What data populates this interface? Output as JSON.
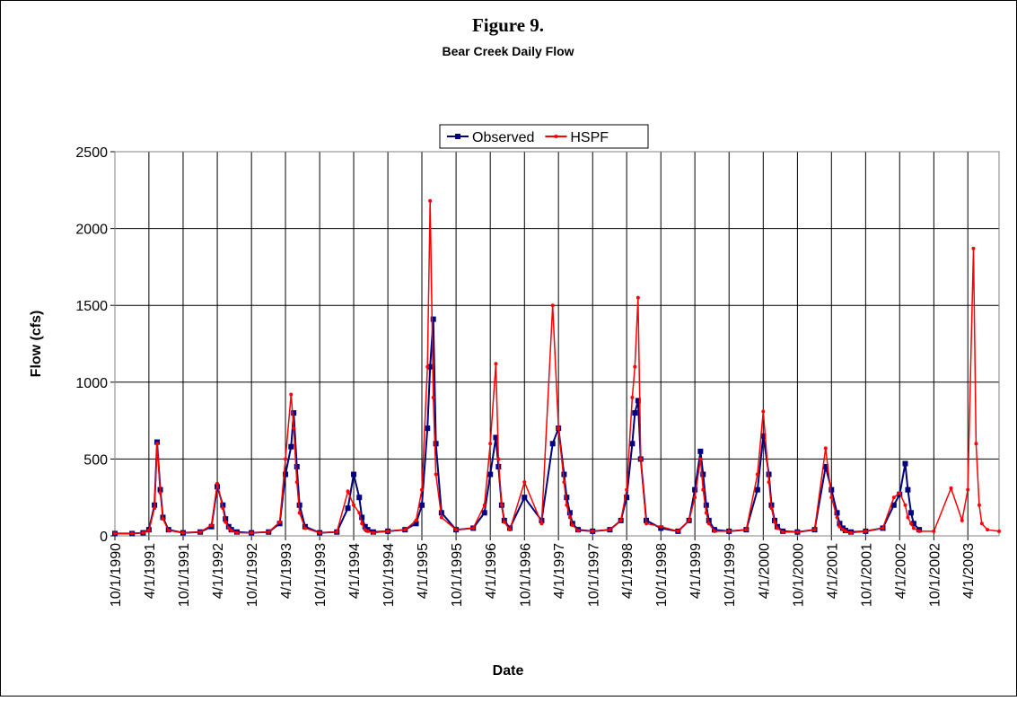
{
  "chart_data": {
    "type": "line",
    "title": "Figure 9.",
    "subtitle": "Bear Creek Daily Flow",
    "x_label": "Date",
    "y_label": "Flow (cfs)",
    "x": [
      "10/1/1990",
      "1/1/1991",
      "3/1/1991",
      "4/1/1991",
      "5/1/1991",
      "5/15/1991",
      "6/1/1991",
      "6/15/1991",
      "7/15/1991",
      "10/1/1991",
      "1/1/1992",
      "3/1/1992",
      "4/1/1992",
      "5/1/1992",
      "5/15/1992",
      "6/1/1992",
      "6/15/1992",
      "7/15/1992",
      "10/1/1992",
      "1/1/1993",
      "3/1/1993",
      "4/1/1993",
      "5/1/1993",
      "5/15/1993",
      "6/1/1993",
      "6/15/1993",
      "7/15/1993",
      "10/1/1993",
      "1/1/1994",
      "3/1/1994",
      "4/1/1994",
      "5/1/1994",
      "5/15/1994",
      "6/1/1994",
      "6/15/1994",
      "7/15/1994",
      "10/1/1994",
      "1/1/1995",
      "3/1/1995",
      "4/1/1995",
      "5/1/1995",
      "5/15/1995",
      "6/1/1995",
      "6/15/1995",
      "7/15/1995",
      "10/1/1995",
      "1/1/1996",
      "3/1/1996",
      "4/1/1996",
      "5/1/1996",
      "5/15/1996",
      "6/1/1996",
      "6/15/1996",
      "7/15/1996",
      "10/1/1996",
      "1/1/1997",
      "3/1/1997",
      "4/1/1997",
      "5/1/1997",
      "5/15/1997",
      "6/1/1997",
      "6/15/1997",
      "7/15/1997",
      "10/1/1997",
      "1/1/1998",
      "3/1/1998",
      "4/1/1998",
      "5/1/1998",
      "5/15/1998",
      "6/1/1998",
      "6/15/1998",
      "7/15/1998",
      "10/1/1998",
      "1/1/1999",
      "3/1/1999",
      "4/1/1999",
      "5/1/1999",
      "5/15/1999",
      "6/1/1999",
      "6/15/1999",
      "7/15/1999",
      "10/1/1999",
      "1/1/2000",
      "3/1/2000",
      "4/1/2000",
      "5/1/2000",
      "5/15/2000",
      "6/1/2000",
      "6/15/2000",
      "7/15/2000",
      "10/1/2000",
      "1/1/2001",
      "3/1/2001",
      "4/1/2001",
      "5/1/2001",
      "5/15/2001",
      "6/1/2001",
      "6/15/2001",
      "7/15/2001",
      "10/1/2001",
      "1/1/2002",
      "3/1/2002",
      "4/1/2002",
      "5/1/2002",
      "5/15/2002",
      "6/1/2002",
      "6/15/2002",
      "7/15/2002",
      "10/1/2002",
      "1/1/2003",
      "3/1/2003",
      "4/1/2003",
      "5/1/2003",
      "5/15/2003",
      "6/1/2003",
      "6/15/2003",
      "7/15/2003",
      "9/15/2003"
    ],
    "series": [
      {
        "name": "Observed",
        "color": "#000080",
        "marker": "square",
        "values": [
          15,
          15,
          20,
          40,
          200,
          610,
          300,
          120,
          40,
          20,
          25,
          60,
          320,
          200,
          110,
          60,
          40,
          25,
          20,
          25,
          80,
          400,
          580,
          800,
          450,
          200,
          60,
          20,
          25,
          180,
          400,
          250,
          120,
          60,
          40,
          25,
          30,
          40,
          80,
          200,
          700,
          1100,
          1410,
          600,
          150,
          40,
          50,
          150,
          400,
          640,
          450,
          200,
          100,
          50,
          250,
          100,
          600,
          700,
          400,
          250,
          150,
          80,
          40,
          30,
          40,
          100,
          250,
          600,
          800,
          880,
          500,
          100,
          50,
          30,
          100,
          300,
          550,
          400,
          200,
          100,
          40,
          30,
          40,
          300,
          650,
          400,
          200,
          100,
          60,
          30,
          25,
          40,
          450,
          300,
          150,
          80,
          50,
          35,
          25,
          30,
          50,
          200,
          270,
          470,
          300,
          150,
          80,
          40,
          null,
          null,
          null,
          null,
          null,
          null,
          null,
          null,
          null,
          null
        ]
      },
      {
        "name": "HSPF",
        "color": "#ff0000",
        "marker": "circle",
        "values": [
          15,
          15,
          20,
          35,
          180,
          600,
          280,
          110,
          35,
          20,
          25,
          70,
          340,
          180,
          90,
          50,
          35,
          20,
          20,
          25,
          90,
          500,
          920,
          700,
          350,
          150,
          50,
          20,
          25,
          290,
          200,
          150,
          80,
          40,
          30,
          20,
          30,
          40,
          100,
          300,
          1100,
          2180,
          900,
          400,
          120,
          40,
          50,
          200,
          600,
          1120,
          500,
          200,
          90,
          40,
          350,
          80,
          1500,
          700,
          350,
          200,
          120,
          70,
          35,
          30,
          40,
          100,
          300,
          900,
          1100,
          1550,
          500,
          80,
          60,
          30,
          100,
          250,
          500,
          300,
          150,
          80,
          30,
          30,
          40,
          400,
          810,
          350,
          180,
          90,
          50,
          25,
          25,
          40,
          570,
          250,
          120,
          60,
          40,
          30,
          20,
          30,
          50,
          250,
          280,
          200,
          120,
          80,
          50,
          30,
          30,
          310,
          100,
          300,
          1870,
          600,
          200,
          80,
          40,
          30
        ]
      }
    ],
    "xlim": [
      "10/1/1990",
      "9/15/2003"
    ],
    "xticks": [
      "10/1/1990",
      "4/1/1991",
      "10/1/1991",
      "4/1/1992",
      "10/1/1992",
      "4/1/1993",
      "10/1/1993",
      "4/1/1994",
      "10/1/1994",
      "4/1/1995",
      "10/1/1995",
      "4/1/1996",
      "10/1/1996",
      "4/1/1997",
      "10/1/1997",
      "4/1/1998",
      "10/1/1998",
      "4/1/1999",
      "10/1/1999",
      "4/1/2000",
      "10/1/2000",
      "4/1/2001",
      "10/1/2001",
      "4/1/2002",
      "10/1/2002",
      "4/1/2003"
    ],
    "ylim": [
      0,
      2500
    ],
    "yticks": [
      0,
      500,
      1000,
      1500,
      2000,
      2500
    ],
    "grid": true,
    "legend": "top"
  }
}
